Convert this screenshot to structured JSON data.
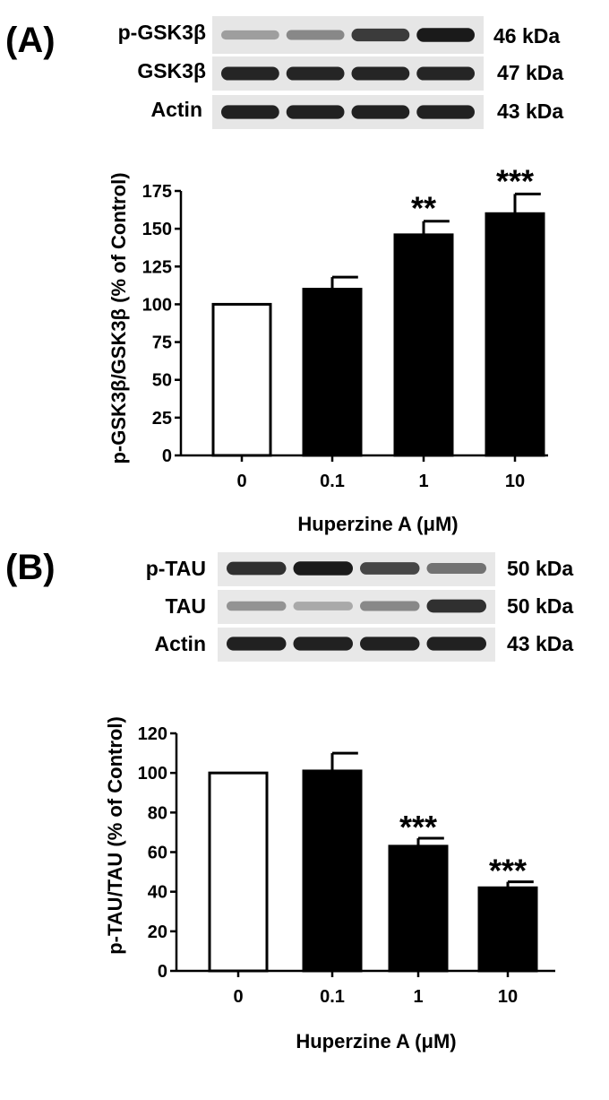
{
  "panels": [
    {
      "label": "(A)",
      "blots": [
        {
          "protein": "p-GSK3β",
          "size": "46 kDa",
          "intensity": [
            0.35,
            0.45,
            0.8,
            0.95
          ]
        },
        {
          "protein": "GSK3β",
          "size": "47 kDa",
          "intensity": [
            0.9,
            0.9,
            0.9,
            0.9
          ]
        },
        {
          "protein": "Actin",
          "size": "43 kDa",
          "intensity": [
            0.92,
            0.92,
            0.92,
            0.92
          ]
        }
      ]
    },
    {
      "label": "(B)",
      "blots": [
        {
          "protein": "p-TAU",
          "size": "50 kDa",
          "intensity": [
            0.85,
            0.95,
            0.75,
            0.55
          ]
        },
        {
          "protein": "TAU",
          "size": "50 kDa",
          "intensity": [
            0.4,
            0.3,
            0.45,
            0.85
          ]
        },
        {
          "protein": "Actin",
          "size": "43 kDa",
          "intensity": [
            0.92,
            0.92,
            0.92,
            0.92
          ]
        }
      ]
    }
  ],
  "chart_data": [
    {
      "type": "bar",
      "categories": [
        "0",
        "0.1",
        "1",
        "10"
      ],
      "values": [
        100,
        110,
        146,
        160
      ],
      "errors": [
        0,
        8,
        9,
        13
      ],
      "significance": [
        "",
        "",
        "**",
        "***"
      ],
      "bar_fills": [
        "#ffffff",
        "#000000",
        "#000000",
        "#000000"
      ],
      "xlabel": "Huperzine A (μM)",
      "ylabel": "p-GSK3β/GSK3β (% of Control)",
      "ylim": [
        0,
        175
      ],
      "yticks": [
        0,
        25,
        50,
        75,
        100,
        125,
        150,
        175
      ]
    },
    {
      "type": "bar",
      "categories": [
        "0",
        "0.1",
        "1",
        "10"
      ],
      "values": [
        100,
        101,
        63,
        42
      ],
      "errors": [
        0,
        9,
        4,
        3
      ],
      "significance": [
        "",
        "",
        "***",
        "***"
      ],
      "bar_fills": [
        "#ffffff",
        "#000000",
        "#000000",
        "#000000"
      ],
      "xlabel": "Huperzine A (μM)",
      "ylabel": "p-TAU/TAU (% of Control)",
      "ylim": [
        0,
        120
      ],
      "yticks": [
        0,
        20,
        40,
        60,
        80,
        100,
        120
      ]
    }
  ]
}
